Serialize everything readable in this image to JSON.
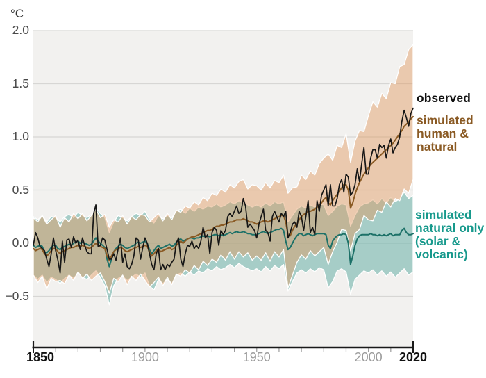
{
  "chart_data": {
    "type": "line",
    "title": "",
    "unit_label": "°C",
    "x_range": {
      "start": 1850,
      "end": 2020,
      "step": 1
    },
    "ylim": [
      -1.0,
      2.0
    ],
    "grid": true,
    "legend_position": "right",
    "plot_bg": "#f2f1ef",
    "gridline_color": "#d7d6d4",
    "axis_color": "#1a1a1a",
    "minor_tick_color": "#9c9c9c",
    "yticks": [
      {
        "value": 2.0,
        "label": "2.0"
      },
      {
        "value": 1.5,
        "label": "1.5"
      },
      {
        "value": 1.0,
        "label": "1.0"
      },
      {
        "value": 0.5,
        "label": "0.5"
      },
      {
        "value": 0.0,
        "label": "0.0"
      },
      {
        "value": -0.5,
        "label": "−0.5"
      }
    ],
    "xticks_labeled": [
      {
        "year": 1850,
        "label": "1850",
        "emphasis": true
      },
      {
        "year": 1900,
        "label": "1900",
        "emphasis": false
      },
      {
        "year": 1950,
        "label": "1950",
        "emphasis": false
      },
      {
        "year": 2000,
        "label": "2000",
        "emphasis": false
      },
      {
        "year": 2020,
        "label": "2020",
        "emphasis": true
      }
    ],
    "xticks_minor": [
      1860,
      1870,
      1880,
      1890,
      1900,
      1910,
      1920,
      1930,
      1940,
      1950,
      1960,
      1970,
      1980,
      1990,
      2000,
      2010
    ],
    "band_order": [
      "natural_only",
      "human_natural"
    ],
    "line_order": [
      "natural_only",
      "human_natural",
      "observed"
    ],
    "series": [
      {
        "id": "observed",
        "label": "observed",
        "color": "#161616",
        "label_color": "#111111",
        "width": 1.7,
        "values": [
          -0.02,
          0.1,
          0.05,
          -0.03,
          -0.05,
          -0.07,
          -0.15,
          -0.22,
          -0.1,
          0.05,
          -0.07,
          -0.16,
          -0.28,
          0.02,
          -0.18,
          0.03,
          0.04,
          -0.04,
          0.06,
          0.0,
          0.03,
          -0.06,
          0.05,
          -0.02,
          -0.08,
          -0.1,
          -0.1,
          0.28,
          0.36,
          -0.03,
          -0.02,
          0.05,
          0.03,
          -0.06,
          -0.15,
          -0.15,
          -0.1,
          -0.16,
          -0.05,
          0.05,
          -0.18,
          -0.1,
          -0.22,
          -0.24,
          -0.2,
          -0.12,
          0.05,
          0.03,
          -0.15,
          -0.04,
          0.05,
          0.0,
          -0.1,
          -0.2,
          -0.25,
          -0.1,
          -0.05,
          -0.25,
          -0.2,
          -0.25,
          -0.2,
          -0.22,
          -0.18,
          -0.15,
          0.0,
          0.05,
          -0.15,
          -0.22,
          -0.1,
          -0.02,
          -0.03,
          0.02,
          -0.05,
          -0.02,
          -0.05,
          0.02,
          0.15,
          0.05,
          0.08,
          -0.1,
          0.1,
          0.15,
          0.12,
          -0.02,
          0.12,
          0.08,
          0.12,
          0.25,
          0.28,
          0.25,
          0.3,
          0.35,
          0.28,
          0.3,
          0.42,
          0.35,
          0.15,
          0.18,
          0.15,
          0.12,
          0.05,
          0.18,
          0.25,
          0.32,
          0.12,
          0.1,
          0.02,
          0.25,
          0.3,
          0.25,
          0.2,
          0.28,
          0.25,
          0.3,
          0.05,
          0.1,
          0.18,
          0.2,
          0.15,
          0.3,
          0.25,
          0.12,
          0.25,
          0.4,
          0.1,
          0.15,
          0.08,
          0.4,
          0.3,
          0.45,
          0.5,
          0.55,
          0.35,
          0.55,
          0.35,
          0.35,
          0.42,
          0.55,
          0.6,
          0.48,
          0.65,
          0.62,
          0.45,
          0.48,
          0.55,
          0.7,
          0.58,
          0.75,
          0.9,
          0.65,
          0.65,
          0.8,
          0.88,
          0.88,
          0.8,
          0.93,
          0.9,
          0.92,
          0.8,
          0.92,
          0.98,
          0.85,
          0.9,
          0.93,
          1.0,
          1.15,
          1.25,
          1.18,
          1.1,
          1.22,
          1.27
        ]
      },
      {
        "id": "human_natural",
        "label": "simulated\nhuman &\nnatural",
        "color": "#8a5a24",
        "label_color": "#8a5a24",
        "width": 2,
        "values": [
          -0.05,
          -0.07,
          -0.06,
          -0.05,
          -0.06,
          -0.1,
          -0.12,
          -0.1,
          -0.07,
          -0.05,
          -0.05,
          -0.08,
          -0.1,
          -0.08,
          -0.07,
          -0.06,
          -0.05,
          -0.04,
          -0.04,
          -0.03,
          -0.02,
          -0.03,
          -0.02,
          -0.03,
          -0.04,
          -0.05,
          -0.04,
          -0.02,
          0.0,
          -0.02,
          -0.03,
          -0.04,
          -0.05,
          -0.12,
          -0.16,
          -0.12,
          -0.08,
          -0.06,
          -0.05,
          -0.04,
          -0.05,
          -0.07,
          -0.08,
          -0.07,
          -0.06,
          -0.05,
          -0.04,
          -0.03,
          -0.04,
          -0.03,
          -0.02,
          -0.03,
          -0.08,
          -0.12,
          -0.1,
          -0.07,
          -0.05,
          -0.08,
          -0.07,
          -0.06,
          -0.05,
          -0.04,
          -0.06,
          -0.05,
          -0.02,
          0.0,
          0.02,
          0.0,
          0.02,
          0.04,
          0.05,
          0.06,
          0.06,
          0.07,
          0.08,
          0.09,
          0.1,
          0.11,
          0.12,
          0.12,
          0.13,
          0.15,
          0.16,
          0.16,
          0.17,
          0.17,
          0.18,
          0.19,
          0.2,
          0.2,
          0.21,
          0.22,
          0.22,
          0.22,
          0.23,
          0.22,
          0.21,
          0.2,
          0.2,
          0.19,
          0.18,
          0.19,
          0.2,
          0.21,
          0.21,
          0.2,
          0.21,
          0.22,
          0.23,
          0.24,
          0.25,
          0.26,
          0.26,
          0.2,
          0.08,
          0.07,
          0.12,
          0.16,
          0.18,
          0.22,
          0.25,
          0.27,
          0.28,
          0.3,
          0.3,
          0.31,
          0.32,
          0.34,
          0.36,
          0.38,
          0.41,
          0.43,
          0.38,
          0.36,
          0.4,
          0.43,
          0.46,
          0.49,
          0.52,
          0.55,
          0.55,
          0.5,
          0.33,
          0.38,
          0.46,
          0.52,
          0.57,
          0.61,
          0.65,
          0.68,
          0.71,
          0.74,
          0.76,
          0.78,
          0.8,
          0.82,
          0.84,
          0.86,
          0.88,
          0.9,
          0.92,
          0.94,
          0.97,
          1.0,
          1.03,
          1.06,
          1.1,
          1.12,
          1.14,
          1.17,
          1.19
        ],
        "band": {
          "color": "rgba(224,153,96,0.45)",
          "step": 2,
          "upper": [
            0.24,
            0.2,
            0.26,
            0.18,
            0.22,
            0.26,
            0.15,
            0.24,
            0.2,
            0.28,
            0.23,
            0.28,
            0.21,
            0.26,
            0.32,
            0.24,
            0.27,
            0.15,
            0.22,
            0.2,
            0.26,
            0.18,
            0.25,
            0.22,
            0.27,
            0.26,
            0.2,
            0.24,
            0.28,
            0.21,
            0.28,
            0.22,
            0.31,
            0.29,
            0.35,
            0.33,
            0.39,
            0.36,
            0.43,
            0.4,
            0.47,
            0.45,
            0.51,
            0.48,
            0.55,
            0.52,
            0.58,
            0.6,
            0.51,
            0.55,
            0.54,
            0.5,
            0.57,
            0.52,
            0.59,
            0.57,
            0.64,
            0.47,
            0.52,
            0.53,
            0.64,
            0.6,
            0.68,
            0.64,
            0.75,
            0.8,
            0.84,
            0.78,
            0.92,
            0.9,
            1.03,
            0.76,
            0.96,
            1.06,
            1.05,
            1.2,
            1.33,
            1.28,
            1.41,
            1.36,
            1.51,
            1.5,
            1.66,
            1.68,
            1.82,
            1.87
          ],
          "lower": [
            -0.3,
            -0.37,
            -0.31,
            -0.43,
            -0.33,
            -0.36,
            -0.35,
            -0.38,
            -0.3,
            -0.35,
            -0.27,
            -0.33,
            -0.29,
            -0.35,
            -0.31,
            -0.28,
            -0.36,
            -0.47,
            -0.33,
            -0.36,
            -0.3,
            -0.39,
            -0.31,
            -0.35,
            -0.29,
            -0.35,
            -0.41,
            -0.37,
            -0.32,
            -0.4,
            -0.32,
            -0.39,
            -0.29,
            -0.31,
            -0.25,
            -0.28,
            -0.21,
            -0.25,
            -0.17,
            -0.21,
            -0.15,
            -0.18,
            -0.11,
            -0.16,
            -0.08,
            -0.15,
            -0.08,
            -0.13,
            -0.09,
            -0.16,
            -0.12,
            -0.16,
            -0.09,
            -0.17,
            -0.08,
            -0.13,
            -0.06,
            -0.42,
            -0.3,
            -0.18,
            -0.11,
            -0.15,
            -0.07,
            -0.12,
            -0.08,
            -0.04,
            -0.2,
            -0.08,
            0.01,
            0.13,
            0.12,
            -0.07,
            0.09,
            0.13,
            0.26,
            0.22,
            0.21,
            0.31,
            0.29,
            0.39,
            0.34,
            0.42,
            0.4,
            0.51,
            0.47,
            0.6
          ]
        }
      },
      {
        "id": "natural_only",
        "label": "simulated\nnatural only\n(solar &\nvolcanic)",
        "color": "#1d7168",
        "label_color": "#17998c",
        "width": 2,
        "values": [
          -0.02,
          -0.04,
          -0.03,
          -0.02,
          -0.03,
          -0.08,
          -0.09,
          -0.07,
          -0.04,
          -0.02,
          -0.02,
          -0.05,
          -0.06,
          -0.04,
          -0.03,
          -0.02,
          -0.01,
          -0.02,
          0.0,
          0.01,
          0.02,
          0.0,
          0.01,
          0.0,
          -0.01,
          -0.02,
          -0.01,
          0.02,
          0.05,
          0.02,
          0.0,
          -0.02,
          -0.04,
          -0.15,
          -0.22,
          -0.15,
          -0.08,
          -0.05,
          -0.03,
          -0.01,
          -0.02,
          -0.04,
          -0.05,
          -0.04,
          -0.03,
          -0.02,
          0.0,
          0.01,
          0.0,
          0.01,
          0.02,
          0.0,
          -0.06,
          -0.1,
          -0.07,
          -0.04,
          -0.02,
          -0.05,
          -0.04,
          -0.03,
          -0.02,
          -0.01,
          -0.03,
          -0.02,
          0.01,
          0.03,
          0.04,
          0.02,
          0.03,
          0.04,
          0.05,
          0.05,
          0.04,
          0.05,
          0.05,
          0.06,
          0.07,
          0.06,
          0.07,
          0.06,
          0.07,
          0.08,
          0.08,
          0.07,
          0.08,
          0.07,
          0.08,
          0.09,
          0.1,
          0.09,
          0.1,
          0.11,
          0.1,
          0.1,
          0.11,
          0.1,
          0.09,
          0.09,
          0.08,
          0.08,
          0.08,
          0.09,
          0.1,
          0.11,
          0.1,
          0.09,
          0.1,
          0.11,
          0.12,
          0.13,
          0.13,
          0.14,
          0.12,
          0.02,
          -0.06,
          -0.04,
          0.0,
          0.04,
          0.07,
          0.09,
          0.09,
          0.07,
          0.08,
          0.09,
          0.08,
          0.07,
          0.08,
          0.09,
          0.09,
          0.09,
          0.09,
          0.08,
          -0.02,
          -0.05,
          0.02,
          0.05,
          0.07,
          0.08,
          0.08,
          0.09,
          0.08,
          0.0,
          -0.2,
          -0.12,
          -0.02,
          0.04,
          0.07,
          0.08,
          0.08,
          0.08,
          0.08,
          0.09,
          0.08,
          0.08,
          0.07,
          0.08,
          0.07,
          0.08,
          0.07,
          0.08,
          0.09,
          0.07,
          0.08,
          0.08,
          0.08,
          0.12,
          0.14,
          0.1,
          0.08,
          0.08,
          0.09
        ],
        "band": {
          "color": "rgba(90,170,160,0.5)",
          "step": 2,
          "upper": [
            0.25,
            0.22,
            0.26,
            0.2,
            0.25,
            0.24,
            0.2,
            0.25,
            0.27,
            0.24,
            0.29,
            0.26,
            0.24,
            0.27,
            0.33,
            0.28,
            0.24,
            0.1,
            0.2,
            0.26,
            0.24,
            0.21,
            0.25,
            0.28,
            0.26,
            0.3,
            0.22,
            0.19,
            0.26,
            0.23,
            0.26,
            0.24,
            0.3,
            0.32,
            0.28,
            0.33,
            0.3,
            0.34,
            0.32,
            0.35,
            0.34,
            0.37,
            0.34,
            0.36,
            0.39,
            0.37,
            0.4,
            0.38,
            0.36,
            0.34,
            0.36,
            0.34,
            0.38,
            0.35,
            0.39,
            0.37,
            0.39,
            0.2,
            0.26,
            0.32,
            0.35,
            0.33,
            0.36,
            0.34,
            0.37,
            0.36,
            0.26,
            0.3,
            0.35,
            0.37,
            0.36,
            0.16,
            0.26,
            0.34,
            0.37,
            0.38,
            0.41,
            0.37,
            0.42,
            0.38,
            0.43,
            0.39,
            0.42,
            0.48,
            0.42,
            0.45
          ],
          "lower": [
            -0.3,
            -0.34,
            -0.3,
            -0.37,
            -0.32,
            -0.34,
            -0.38,
            -0.33,
            -0.3,
            -0.33,
            -0.28,
            -0.32,
            -0.34,
            -0.3,
            -0.26,
            -0.32,
            -0.4,
            -0.58,
            -0.4,
            -0.33,
            -0.31,
            -0.35,
            -0.32,
            -0.29,
            -0.32,
            -0.28,
            -0.4,
            -0.44,
            -0.34,
            -0.38,
            -0.34,
            -0.38,
            -0.3,
            -0.28,
            -0.31,
            -0.27,
            -0.3,
            -0.26,
            -0.28,
            -0.24,
            -0.26,
            -0.22,
            -0.25,
            -0.23,
            -0.2,
            -0.23,
            -0.19,
            -0.22,
            -0.24,
            -0.26,
            -0.24,
            -0.27,
            -0.22,
            -0.26,
            -0.21,
            -0.24,
            -0.2,
            -0.45,
            -0.36,
            -0.28,
            -0.25,
            -0.28,
            -0.24,
            -0.27,
            -0.23,
            -0.25,
            -0.42,
            -0.36,
            -0.26,
            -0.24,
            -0.27,
            -0.48,
            -0.34,
            -0.3,
            -0.26,
            -0.28,
            -0.25,
            -0.3,
            -0.26,
            -0.31,
            -0.27,
            -0.32,
            -0.28,
            -0.24,
            -0.3,
            -0.27
          ]
        }
      }
    ]
  }
}
